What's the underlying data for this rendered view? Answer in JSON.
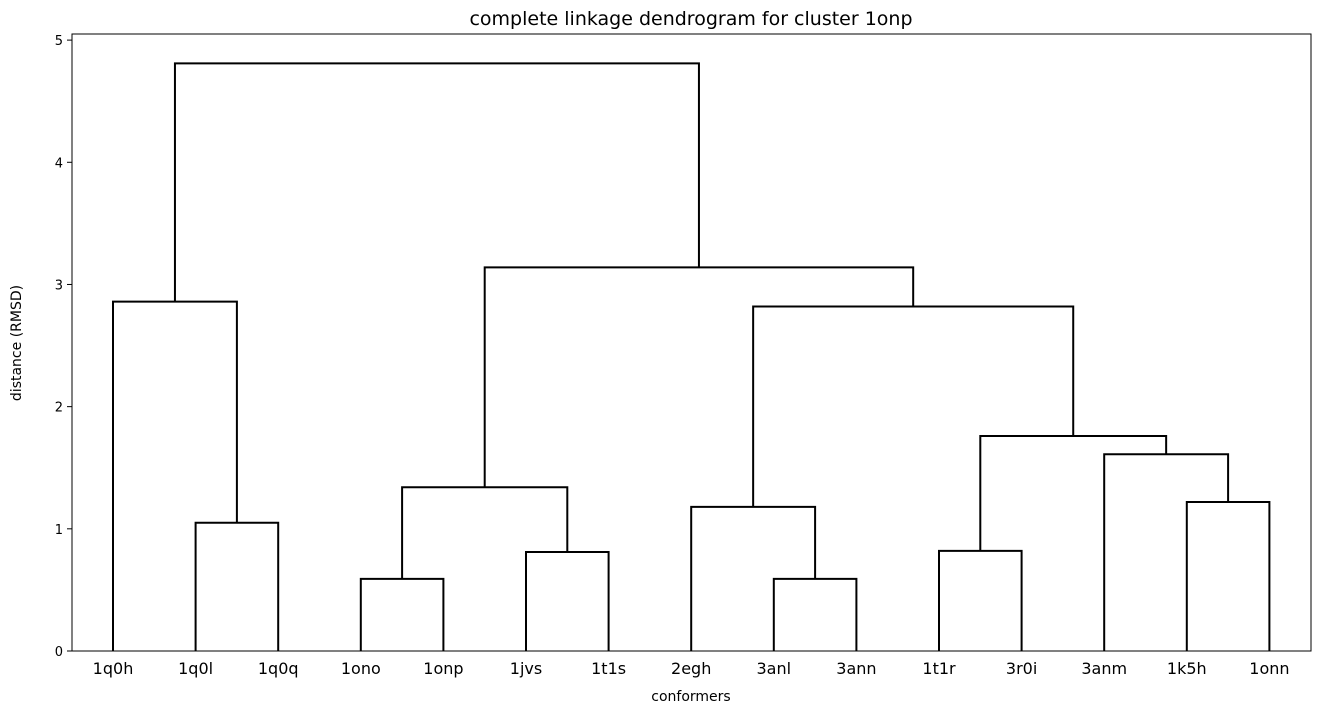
{
  "chart_data": {
    "type": "dendrogram",
    "title": "complete linkage dendrogram for cluster 1onp",
    "xlabel": "conformers",
    "ylabel": "distance (RMSD)",
    "ylim": [
      0,
      5.05
    ],
    "yticks": [
      0,
      1,
      2,
      3,
      4,
      5
    ],
    "leaves": [
      "1q0h",
      "1q0l",
      "1q0q",
      "1ono",
      "1onp",
      "1jvs",
      "1t1s",
      "2egh",
      "3anl",
      "3ann",
      "1t1r",
      "3r0i",
      "3anm",
      "1k5h",
      "1onn"
    ],
    "merges": [
      {
        "left": "1ono",
        "right": "1onp",
        "height": 0.59
      },
      {
        "left": "3anl",
        "right": "3ann",
        "height": 0.59
      },
      {
        "left": "1jvs",
        "right": "1t1s",
        "height": 0.81
      },
      {
        "left": "1t1r",
        "right": "3r0i",
        "height": 0.82
      },
      {
        "left": "1q0l",
        "right": "1q0q",
        "height": 1.05
      },
      {
        "left": "2egh",
        "right": "{3anl,3ann}",
        "height": 1.18
      },
      {
        "left": "1k5h",
        "right": "1onn",
        "height": 1.22
      },
      {
        "left": "{1ono,1onp}",
        "right": "{1jvs,1t1s}",
        "height": 1.34
      },
      {
        "left": "3anm",
        "right": "{1k5h,1onn}",
        "height": 1.61
      },
      {
        "left": "{1t1r,3r0i}",
        "right": "{3anm,1k5h,1onn}",
        "height": 1.76
      },
      {
        "left": "{2egh,3anl,3ann}",
        "right": "{1t1r,3r0i,3anm,1k5h,1onn}",
        "height": 2.82
      },
      {
        "left": "1q0h",
        "right": "{1q0l,1q0q}",
        "height": 2.86
      },
      {
        "left": "{1ono,1onp,1jvs,1t1s}",
        "right": "{2egh,3anl,3ann,1t1r,3r0i,3anm,1k5h,1onn}",
        "height": 3.14
      },
      {
        "left": "{1q0h,1q0l,1q0q}",
        "right": "{1ono,1onp,1jvs,1t1s,2egh,3anl,3ann,1t1r,3r0i,3anm,1k5h,1onn}",
        "height": 4.81
      }
    ],
    "link_color": "#000000",
    "grid": false
  }
}
